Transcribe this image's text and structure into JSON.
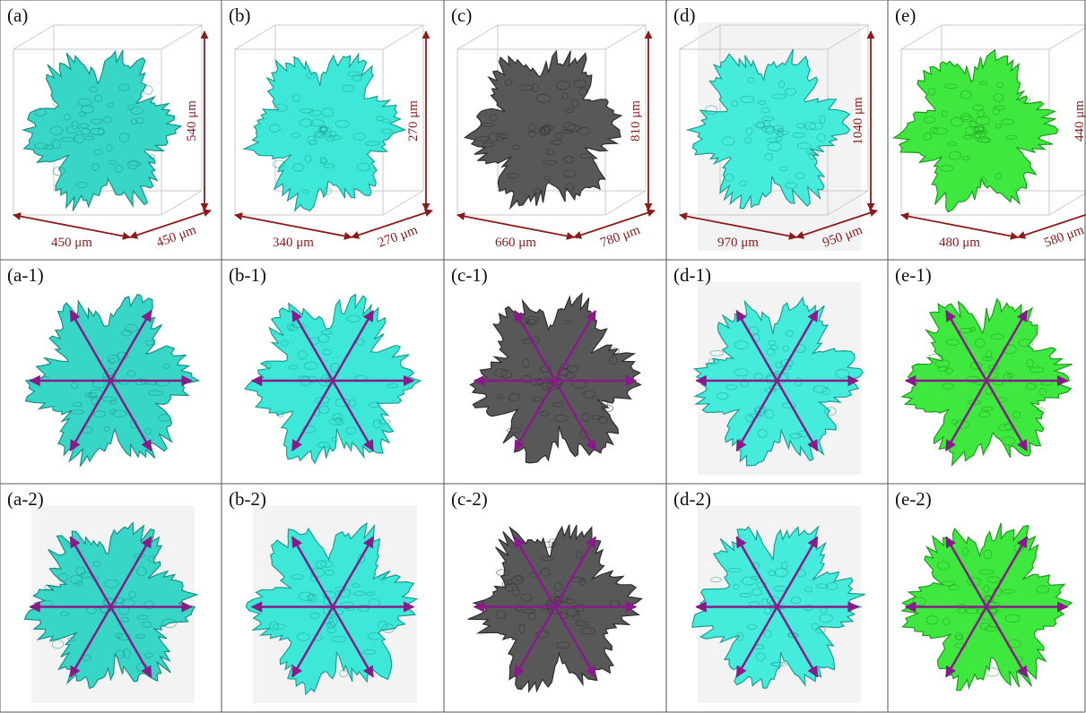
{
  "panels": [
    [
      "(a)",
      "(b)",
      "(c)",
      "(d)",
      "(e)"
    ],
    [
      "(a-1)",
      "(b-1)",
      "(c-1)",
      "(d-1)",
      "(e-1)"
    ],
    [
      "(a-2)",
      "(b-2)",
      "(c-2)",
      "(d-2)",
      "(e-2)"
    ]
  ],
  "dimensions": [
    [
      "540 μm",
      "450 μm",
      "450 μm"
    ],
    [
      "270 μm",
      "340 μm",
      "270 μm"
    ],
    [
      "810 μm",
      "660 μm",
      "780 μm"
    ],
    [
      "1040 μm",
      "970 μm",
      "950 μm"
    ],
    [
      "440 μm",
      "480 μm",
      "580 μm"
    ]
  ]
}
